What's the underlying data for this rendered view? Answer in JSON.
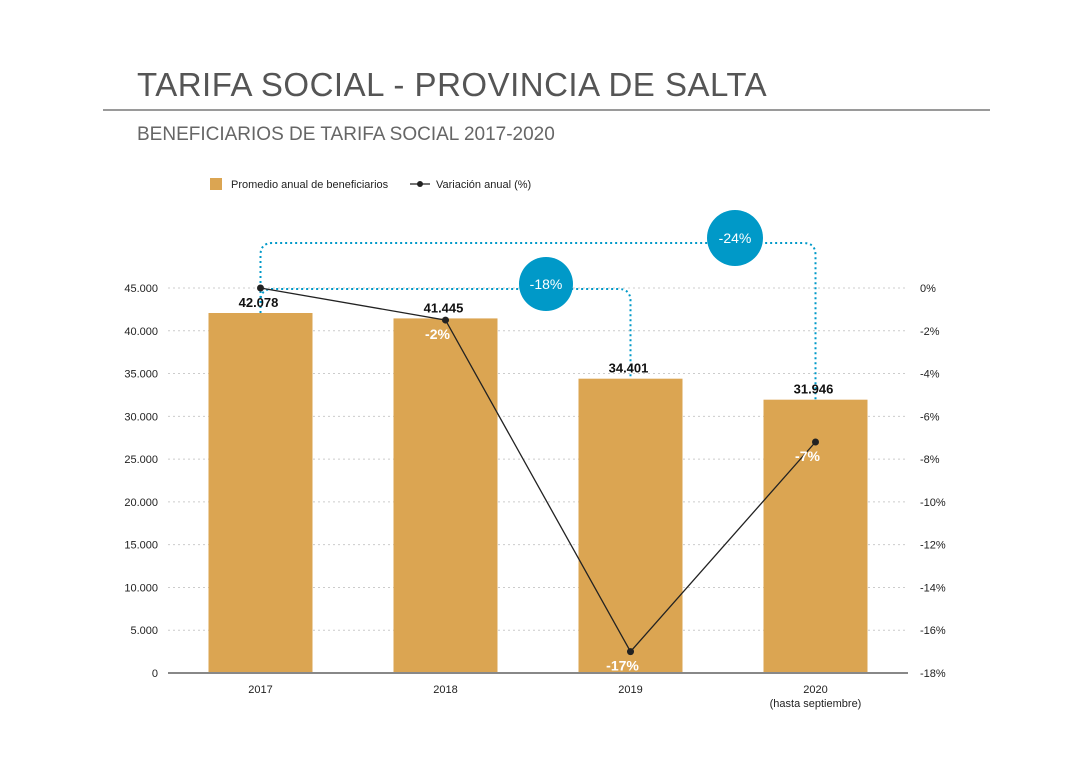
{
  "header": {
    "title": "TARIFA SOCIAL - PROVINCIA DE SALTA",
    "subtitle": "BENEFICIARIOS DE TARIFA SOCIAL 2017-2020"
  },
  "chart_data": {
    "type": "bar",
    "categories": [
      "2017",
      "2018",
      "2019",
      "2020"
    ],
    "category_sublabels": [
      "",
      "",
      "",
      "(hasta septiembre)"
    ],
    "series": [
      {
        "name": "Promedio anual de beneficiarios",
        "type": "bar",
        "axis": "left",
        "values": [
          42078,
          41445,
          34401,
          31946
        ],
        "data_labels": [
          "42.078",
          "41.445",
          "34.401",
          "31.946"
        ]
      },
      {
        "name": "Variación anual (%)",
        "type": "line",
        "axis": "right",
        "values": [
          0,
          -1.5,
          -17,
          -7.2
        ],
        "data_labels": [
          "",
          "-2%",
          "-17%",
          "-7%"
        ]
      }
    ],
    "y_left": {
      "range": [
        0,
        45000
      ],
      "ticks": [
        0,
        5000,
        10000,
        15000,
        20000,
        25000,
        30000,
        35000,
        40000,
        45000
      ],
      "tick_labels": [
        "0",
        "5.000",
        "10.000",
        "15.000",
        "20.000",
        "25.000",
        "30.000",
        "35.000",
        "40.000",
        "45.000"
      ]
    },
    "y_right": {
      "range": [
        -18,
        0
      ],
      "ticks": [
        0,
        -2,
        -4,
        -6,
        -8,
        -10,
        -12,
        -14,
        -16,
        -18
      ],
      "tick_labels": [
        "0%",
        "-2%",
        "-4%",
        "-6%",
        "-8%",
        "-10%",
        "-12%",
        "-14%",
        "-16%",
        "-18%"
      ]
    },
    "grid": "horizontal-dotted",
    "legend": "top-left",
    "annotations": [
      {
        "from": "2017",
        "to": "2019",
        "label": "-18%"
      },
      {
        "from": "2017",
        "to": "2020",
        "label": "-24%"
      }
    ],
    "colors": {
      "bar": "#dba552",
      "line": "#222222",
      "bracket": "#0099c8",
      "bubble": "#0099c8",
      "grid": "#cccccc"
    }
  }
}
